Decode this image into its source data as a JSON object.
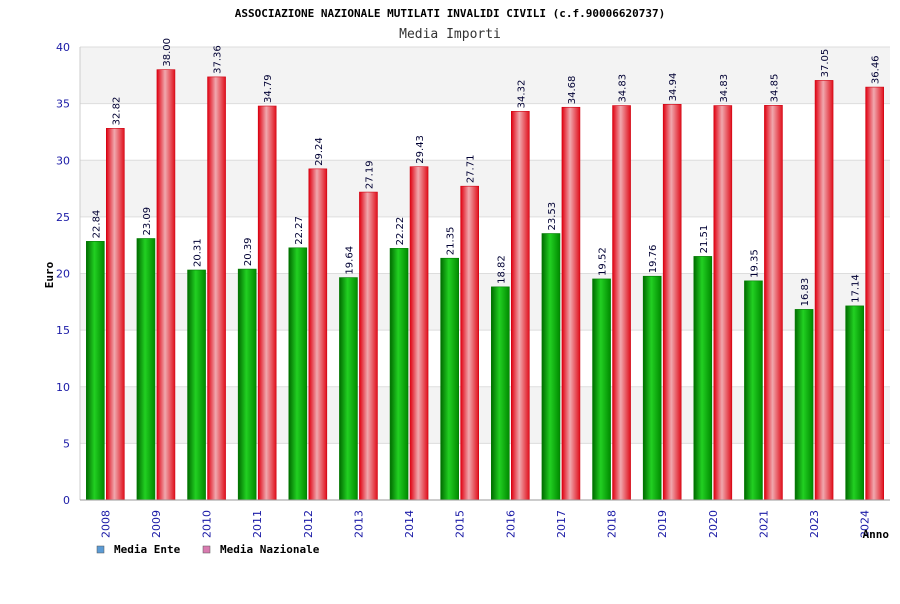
{
  "chart_data": {
    "type": "bar",
    "title": "ASSOCIAZIONE NAZIONALE MUTILATI INVALIDI CIVILI (c.f.90006620737)",
    "subtitle": "Media Importi",
    "xlabel": "Anno",
    "ylabel": "Euro",
    "ylim": [
      0,
      40
    ],
    "yticks": [
      0,
      5,
      10,
      15,
      20,
      25,
      30,
      35,
      40
    ],
    "grid": true,
    "legend_position": "bottom-left",
    "categories": [
      "2008",
      "2009",
      "2010",
      "2011",
      "2012",
      "2013",
      "2014",
      "2015",
      "2016",
      "2017",
      "2018",
      "2019",
      "2020",
      "2021",
      "2023",
      "2024"
    ],
    "series": [
      {
        "name": "Media Ente",
        "color": "#1fb81f",
        "legend_color": "#5b9bd5",
        "values": [
          22.84,
          23.09,
          20.31,
          20.39,
          22.27,
          19.64,
          22.22,
          21.35,
          18.82,
          23.53,
          19.52,
          19.76,
          21.51,
          19.35,
          16.83,
          17.14
        ],
        "labels": [
          "22.84",
          "23.09",
          "20.31",
          "20.39",
          "22.27",
          "19.64",
          "22.22",
          "21.35",
          "18.82",
          "23.53",
          "19.52",
          "19.76",
          "21.51",
          "19.35",
          "16.83",
          "17.14"
        ]
      },
      {
        "name": "Media Nazionale",
        "color": "#e8202a",
        "legend_color": "#d97bb0",
        "values": [
          32.82,
          38.0,
          37.36,
          34.79,
          29.24,
          27.19,
          29.43,
          27.71,
          34.32,
          34.68,
          34.83,
          34.94,
          34.83,
          34.85,
          37.05,
          36.46
        ],
        "labels": [
          "32.82",
          "38.00",
          "37.36",
          "34.79",
          "29.24",
          "27.19",
          "29.43",
          "27.71",
          "34.32",
          "34.68",
          "34.83",
          "34.94",
          "34.83",
          "34.85",
          "37.05",
          "36.46"
        ]
      }
    ]
  }
}
